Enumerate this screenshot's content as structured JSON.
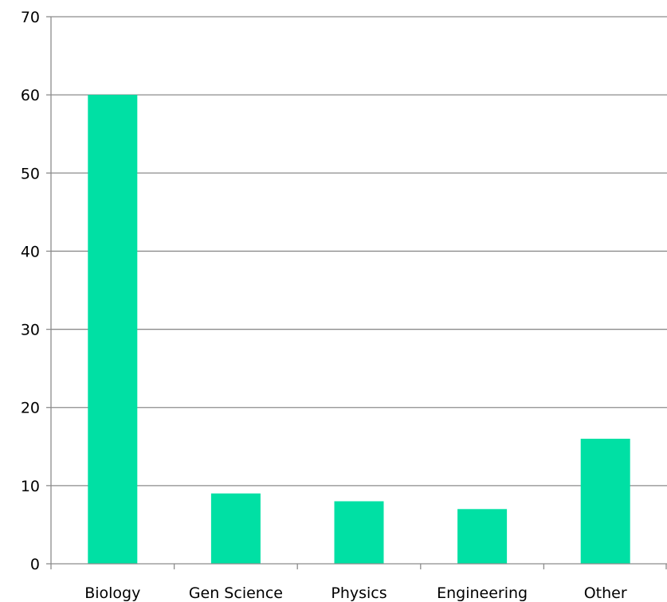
{
  "chart_data": {
    "type": "bar",
    "title": "",
    "xlabel": "",
    "ylabel": "",
    "categories": [
      "Biology",
      "Gen Science",
      "Physics",
      "Engineering",
      "Other"
    ],
    "values": [
      60,
      9,
      8,
      7,
      16
    ],
    "ylim": [
      0,
      70
    ],
    "yticks": [
      0,
      10,
      20,
      30,
      40,
      50,
      60,
      70
    ],
    "grid": true,
    "legend": "none",
    "colors": {
      "bar": "#00e0a4",
      "grid": "#8c8c8c",
      "text": "#000000"
    }
  }
}
